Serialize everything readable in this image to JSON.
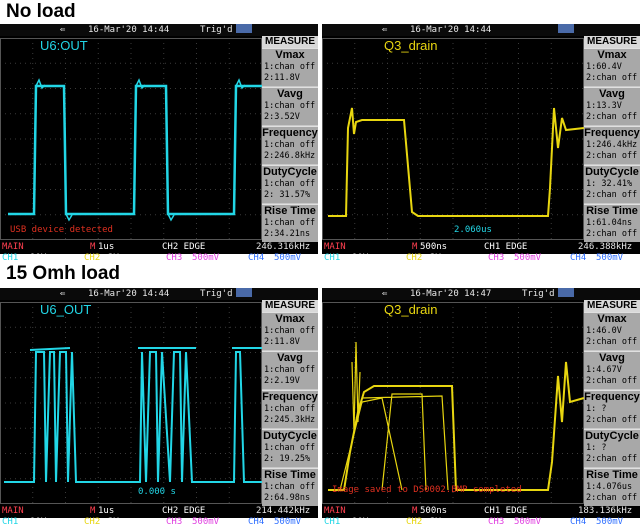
{
  "labels": {
    "top": "No load",
    "bottom": "15 Omh load"
  },
  "panels": [
    {
      "id": "p1",
      "date": "16-Mar'20 14:44",
      "trig": "Trig'd",
      "channel_label": "U6:OUT",
      "channel_color": "#22d6e6",
      "cursor": "",
      "status": "USB device detected",
      "measure": {
        "title": "MEASURE",
        "items": [
          {
            "name": "Vmax",
            "l1": "1:chan off",
            "l2": "2:11.8V"
          },
          {
            "name": "Vavg",
            "l1": "1:chan off",
            "l2": "2:3.52V"
          },
          {
            "name": "Frequency",
            "l1": "1:chan off",
            "l2": "2:246.8kHz"
          },
          {
            "name": "DutyCycle",
            "l1": "1:chan off",
            "l2": "2: 31.57%"
          },
          {
            "name": "Rise Time",
            "l1": "1:chan off",
            "l2": "2:34.21ns"
          }
        ]
      },
      "bottom": {
        "main": "MAIN",
        "mark": "M",
        "tb": "1us",
        "trig": "CH2 EDGE",
        "freq": "246.316kHz",
        "ch1": "CH1",
        "ch1v": "10V",
        "ch2": "CH2",
        "ch2v": "2V",
        "ch3": "CH3",
        "ch3v": "500mV",
        "ch4": "CH4",
        "ch4v": "500mV"
      }
    },
    {
      "id": "p2",
      "date": "16-Mar'20 14:44",
      "trig": "",
      "channel_label": "Q3_drain",
      "channel_color": "#e8d610",
      "cursor": "2.060us",
      "status": "",
      "measure": {
        "title": "MEASURE",
        "items": [
          {
            "name": "Vmax",
            "l1": "1:60.4V",
            "l2": "2:chan off"
          },
          {
            "name": "Vavg",
            "l1": "1:13.3V",
            "l2": "2:chan off"
          },
          {
            "name": "Frequency",
            "l1": "1:246.4kHz",
            "l2": "2:chan off"
          },
          {
            "name": "DutyCycle",
            "l1": "1: 32.41%",
            "l2": "2:chan off"
          },
          {
            "name": "Rise Time",
            "l1": "1:61.04ns",
            "l2": "2:chan off"
          }
        ]
      },
      "bottom": {
        "main": "MAIN",
        "mark": "M",
        "tb": "500ns",
        "trig": "CH1 EDGE",
        "freq": "246.388kHz",
        "ch1": "CH1",
        "ch1v": "10V",
        "ch2": "CH2",
        "ch2v": "2V",
        "ch3": "CH3",
        "ch3v": "500mV",
        "ch4": "CH4",
        "ch4v": "500mV"
      }
    },
    {
      "id": "p3",
      "date": "16-Mar'20 14:44",
      "trig": "Trig'd",
      "channel_label": "U6_OUT",
      "channel_color": "#22d6e6",
      "cursor": "0.000 s",
      "status": "",
      "measure": {
        "title": "MEASURE",
        "items": [
          {
            "name": "Vmax",
            "l1": "1:chan off",
            "l2": "2:11.8V"
          },
          {
            "name": "Vavg",
            "l1": "1:chan off",
            "l2": "2:2.19V"
          },
          {
            "name": "Frequency",
            "l1": "1:chan off",
            "l2": "2:245.3kHz"
          },
          {
            "name": "DutyCycle",
            "l1": "1:chan off",
            "l2": "2: 19.25%"
          },
          {
            "name": "Rise Time",
            "l1": "1:chan off",
            "l2": "2:64.98ns"
          }
        ]
      },
      "bottom": {
        "main": "MAIN",
        "mark": "M",
        "tb": "1us",
        "trig": "CH2 EDGE",
        "freq": "214.442kHz",
        "ch1": "CH1",
        "ch1v": "10V",
        "ch2": "CH2",
        "ch2v": "2V",
        "ch3": "CH3",
        "ch3v": "500mV",
        "ch4": "CH4",
        "ch4v": "500mV"
      }
    },
    {
      "id": "p4",
      "date": "16-Mar'20 14:47",
      "trig": "Trig'd",
      "channel_label": "Q3_drain",
      "channel_color": "#e8d610",
      "cursor": "",
      "status": "Image saved to DS0002.BMP completed",
      "measure": {
        "title": "MEASURE",
        "items": [
          {
            "name": "Vmax",
            "l1": "1:46.0V",
            "l2": "2:chan off"
          },
          {
            "name": "Vavg",
            "l1": "1:4.67V",
            "l2": "2:chan off"
          },
          {
            "name": "Frequency",
            "l1": "1:   ?",
            "l2": "2:chan off"
          },
          {
            "name": "DutyCycle",
            "l1": "1:   ?",
            "l2": "2:chan off"
          },
          {
            "name": "Rise Time",
            "l1": "1:4.076us",
            "l2": "2:chan off"
          }
        ]
      },
      "bottom": {
        "main": "MAIN",
        "mark": "M",
        "tb": "500ns",
        "trig": "CH1 EDGE",
        "freq": "183.136kHz",
        "ch1": "CH1",
        "ch1v": "10V",
        "ch2": "CH2",
        "ch2v": "2V",
        "ch3": "CH3",
        "ch3v": "500mV",
        "ch4": "CH4",
        "ch4v": "500mV"
      }
    }
  ]
}
